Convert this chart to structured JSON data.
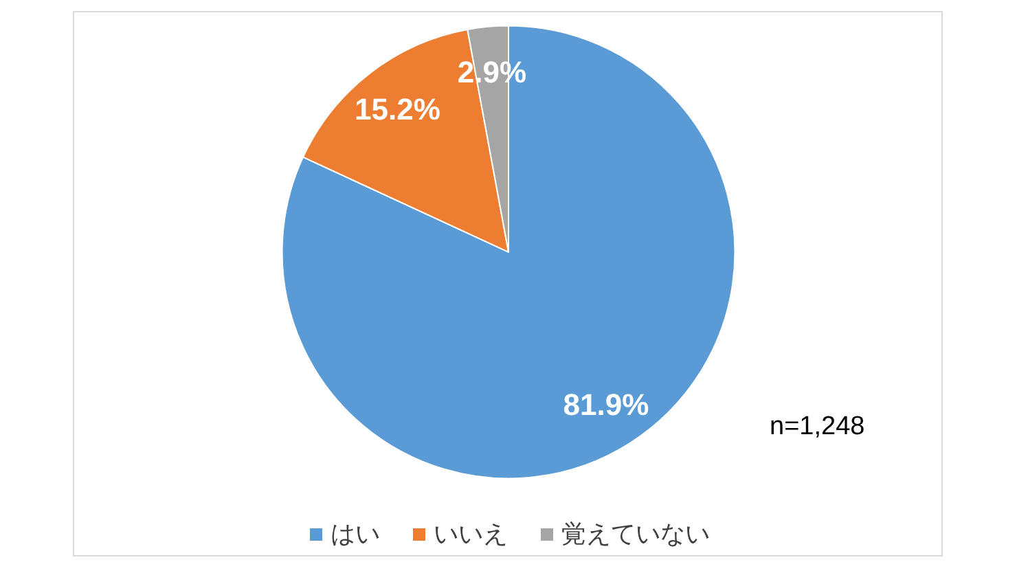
{
  "chart_data": {
    "type": "pie",
    "categories": [
      "はい",
      "いいえ",
      "覚えていない"
    ],
    "values": [
      81.9,
      15.2,
      2.9
    ],
    "colors": [
      "#5b9bd5",
      "#ed7d31",
      "#a5a5a5"
    ],
    "value_labels": [
      "81.9%",
      "15.2%",
      "2.9%"
    ],
    "legend": "bottom",
    "annotations": [
      "n=1,248"
    ]
  }
}
